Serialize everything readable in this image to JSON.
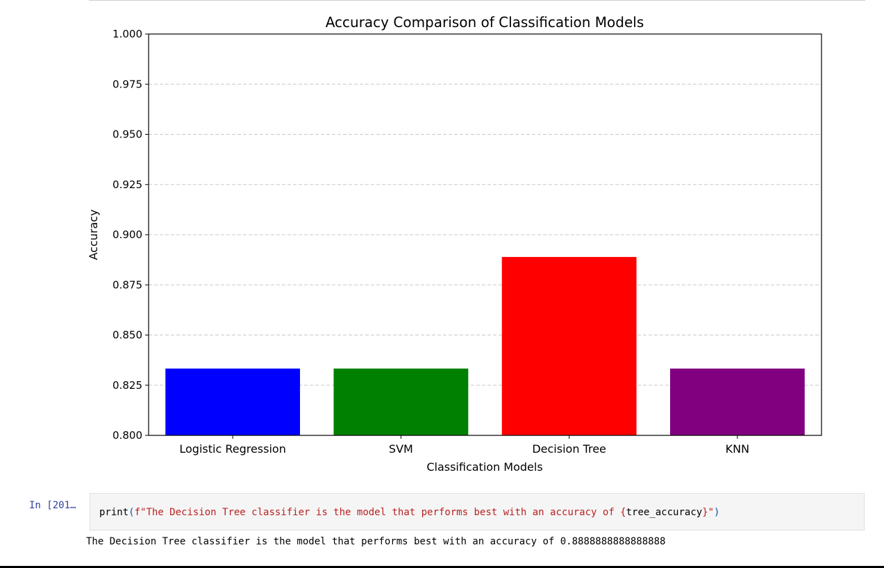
{
  "colors": {
    "bar_colors": [
      "#0000ff",
      "#008000",
      "#ff0000",
      "#800080"
    ],
    "grid": "#c8c8c8",
    "prompt": "#303f9f",
    "string": "#ba2121",
    "paren": "#0055aa",
    "code_bg": "#f5f5f5"
  },
  "chart_data": {
    "type": "bar",
    "title": "Accuracy Comparison of Classification Models",
    "xlabel": "Classification Models",
    "ylabel": "Accuracy",
    "categories": [
      "Logistic Regression",
      "SVM",
      "Decision Tree",
      "KNN"
    ],
    "values": [
      0.8333,
      0.8333,
      0.8889,
      0.8333
    ],
    "ylim": [
      0.8,
      1.0
    ],
    "yticks": [
      "0.800",
      "0.825",
      "0.850",
      "0.875",
      "0.900",
      "0.925",
      "0.950",
      "0.975",
      "1.000"
    ],
    "grid": "y-dashed"
  },
  "cell": {
    "prompt": "In [201…",
    "code": {
      "func": "print",
      "open_paren": "(",
      "string_open": "f\"The Decision Tree classifier is the model that performs best with an accuracy of {",
      "variable": "tree_accuracy",
      "string_close": "}\"",
      "close_paren": ")"
    },
    "output": "The Decision Tree classifier is the model that performs best with an accuracy of 0.8888888888888888"
  }
}
